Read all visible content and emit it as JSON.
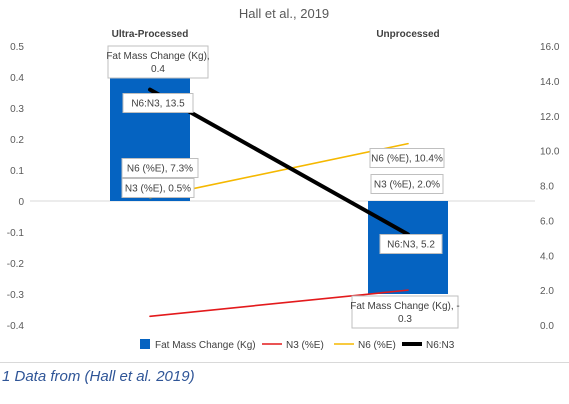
{
  "caption": "1 Data from (Hall et al. 2019)",
  "chart_data": {
    "type": "bar",
    "title": "Hall et al., 2019",
    "categories": [
      "Ultra-Processed",
      "Unprocessed"
    ],
    "y_left": {
      "lim": [
        -0.4,
        0.5
      ],
      "ticks": [
        0.5,
        0.4,
        0.3,
        0.2,
        0.1,
        0,
        -0.1,
        -0.2,
        -0.3,
        -0.4
      ]
    },
    "y_right": {
      "lim": [
        0.0,
        16.0
      ],
      "ticks": [
        0.0,
        2.0,
        4.0,
        6.0,
        8.0,
        10.0,
        12.0,
        14.0,
        16.0
      ]
    },
    "grid": false,
    "legend_position": "bottom",
    "series": [
      {
        "name": "Fat Mass Change (Kg)",
        "kind": "bar",
        "axis": "left",
        "color": "#0563c1",
        "values": [
          0.4,
          -0.3
        ],
        "labels": [
          [
            "Fat Mass Change (Kg),",
            "0.4"
          ],
          [
            "Fat Mass Change (Kg), -",
            "0.3"
          ]
        ]
      },
      {
        "name": "N3 (%E)",
        "kind": "line",
        "axis": "right",
        "color": "#e31a1c",
        "values": [
          0.5,
          2.0
        ],
        "labels": [
          [
            "N3 (%E), 0.5%"
          ],
          [
            "N3 (%E), 2.0%"
          ]
        ]
      },
      {
        "name": "N6 (%E)",
        "kind": "line",
        "axis": "right",
        "color": "#f5b800",
        "values": [
          7.3,
          10.4
        ],
        "labels": [
          [
            "N6 (%E), 7.3%"
          ],
          [
            "N6 (%E), 10.4%"
          ]
        ]
      },
      {
        "name": "N6:N3",
        "kind": "line",
        "axis": "right",
        "color": "#000000",
        "values": [
          13.5,
          5.2
        ],
        "labels": [
          [
            "N6:N3, 13.5"
          ],
          [
            "N6:N3, 5.2"
          ]
        ]
      }
    ]
  }
}
